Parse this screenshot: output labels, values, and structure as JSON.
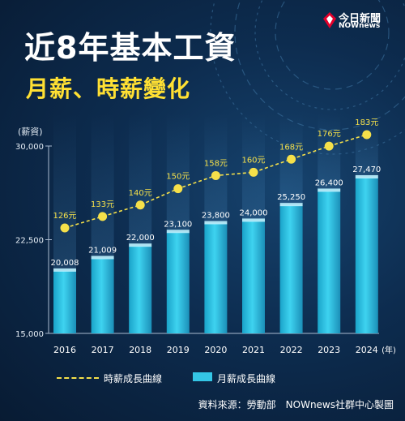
{
  "header": {
    "title": "近8年基本工資",
    "subtitle": "月薪、時薪變化",
    "y_unit": "(薪資)"
  },
  "brand": {
    "line1": "今日新聞",
    "line2": "NOWnews",
    "accent": "#e4002b"
  },
  "legend": {
    "hourly": "時薪成長曲線",
    "monthly": "月薪成長曲線"
  },
  "source": "資料來源：勞動部　NOWnews社群中心製圖",
  "chart_data": {
    "type": "bar",
    "categories": [
      "2016",
      "2017",
      "2018",
      "2019",
      "2020",
      "2021",
      "2022",
      "2023",
      "2024"
    ],
    "x_unit": "(年)",
    "ylabel": "(薪資)",
    "ylim": [
      15000,
      30000
    ],
    "y_ticks": [
      "15,000",
      "22,500",
      "30,000"
    ],
    "y_tick_values": [
      15000,
      22500,
      30000
    ],
    "series": [
      {
        "name": "月薪成長曲線",
        "type": "bar",
        "values": [
          20008,
          21009,
          22000,
          23100,
          23800,
          24000,
          25250,
          26400,
          27470
        ],
        "labels": [
          "20,008",
          "21,009",
          "22,000",
          "23,100",
          "23,800",
          "24,000",
          "25,250",
          "26,400",
          "27,470"
        ],
        "color": "#34c6e6"
      },
      {
        "name": "時薪成長曲線",
        "type": "line",
        "values": [
          126,
          133,
          140,
          150,
          158,
          160,
          168,
          176,
          183
        ],
        "labels": [
          "126元",
          "133元",
          "140元",
          "150元",
          "158元",
          "160元",
          "168元",
          "176元",
          "183元"
        ],
        "color": "#f5e04a"
      }
    ],
    "legend_position": "bottom",
    "grid": false
  }
}
